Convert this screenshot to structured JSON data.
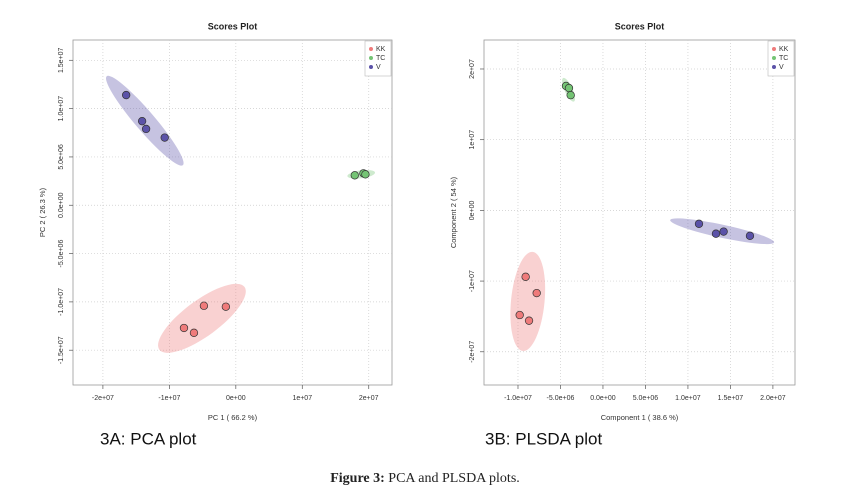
{
  "chart_data": [
    {
      "type": "scatter",
      "title": "Scores Plot",
      "x_label": "PC 1 ( 66.2 %)",
      "y_label": "PC 2 ( 26.3 %)",
      "panel_label": "3A: PCA plot",
      "xlim": [
        -24500000,
        23500000
      ],
      "ylim": [
        -18600000,
        17100000
      ],
      "xticks": [
        {
          "value": -20000000,
          "label": "-2e+07"
        },
        {
          "value": -10000000,
          "label": "-1e+07"
        },
        {
          "value": 0,
          "label": "0e+00"
        },
        {
          "value": 10000000,
          "label": "1e+07"
        },
        {
          "value": 20000000,
          "label": "2e+07"
        }
      ],
      "yticks": [
        {
          "value": 15000000,
          "label": "1.5e+07"
        },
        {
          "value": 10000000,
          "label": "1.0e+07"
        },
        {
          "value": 5000000,
          "label": "5.0e+06"
        },
        {
          "value": 0,
          "label": "0.0e+00"
        },
        {
          "value": -5000000,
          "label": "-5.0e+06"
        },
        {
          "value": -10000000,
          "label": "-1.0e+07"
        },
        {
          "value": -15000000,
          "label": "-1.5e+07"
        }
      ],
      "grid": true,
      "legend": "top-right",
      "series": [
        {
          "name": "KK",
          "color": "#ef7b7b",
          "x": [
            -4800000,
            -1500000,
            -7800000,
            -6300000
          ],
          "values": [
            -10400000,
            -10500000,
            -12700000,
            -13200000
          ]
        },
        {
          "name": "TC",
          "color": "#74c474",
          "x": [
            17900000,
            19200000,
            19500000
          ],
          "values": [
            3100000,
            3300000,
            3200000
          ]
        },
        {
          "name": "V",
          "color": "#5b52a8",
          "x": [
            -16500000,
            -14100000,
            -13500000,
            -10700000
          ],
          "values": [
            11400000,
            8700000,
            7900000,
            7000000
          ]
        }
      ]
    },
    {
      "type": "scatter",
      "title": "Scores Plot",
      "x_label": "Component 1 ( 38.6 %)",
      "y_label": "Component 2 ( 54 %)",
      "panel_label": "3B: PLSDA plot",
      "xlim": [
        -14000000,
        22600000
      ],
      "ylim": [
        -24700000,
        24100000
      ],
      "xticks": [
        {
          "value": -10000000,
          "label": "-1.0e+07"
        },
        {
          "value": -5000000,
          "label": "-5.0e+06"
        },
        {
          "value": 0,
          "label": "0.0e+00"
        },
        {
          "value": 5000000,
          "label": "5.0e+06"
        },
        {
          "value": 10000000,
          "label": "1.0e+07"
        },
        {
          "value": 15000000,
          "label": "1.5e+07"
        },
        {
          "value": 20000000,
          "label": "2.0e+07"
        }
      ],
      "yticks": [
        {
          "value": 20000000,
          "label": "2e+07"
        },
        {
          "value": 10000000,
          "label": "1e+07"
        },
        {
          "value": 0,
          "label": "0e+00"
        },
        {
          "value": -10000000,
          "label": "-1e+07"
        },
        {
          "value": -20000000,
          "label": "-2e+07"
        }
      ],
      "grid": true,
      "legend": "top-right",
      "series": [
        {
          "name": "KK",
          "color": "#ef7b7b",
          "x": [
            -9100000,
            -7800000,
            -9800000,
            -8700000
          ],
          "values": [
            -9400000,
            -11700000,
            -14800000,
            -15600000
          ]
        },
        {
          "name": "TC",
          "color": "#74c474",
          "x": [
            -4350000,
            -4000000,
            -3800000
          ],
          "values": [
            17600000,
            17300000,
            16300000
          ]
        },
        {
          "name": "V",
          "color": "#5b52a8",
          "x": [
            11300000,
            13300000,
            14200000,
            17300000
          ],
          "values": [
            -1900000,
            -3300000,
            -3000000,
            -3600000
          ]
        }
      ]
    }
  ],
  "caption": {
    "label": "Figure 3:",
    "text": "PCA and PLSDA plots."
  }
}
